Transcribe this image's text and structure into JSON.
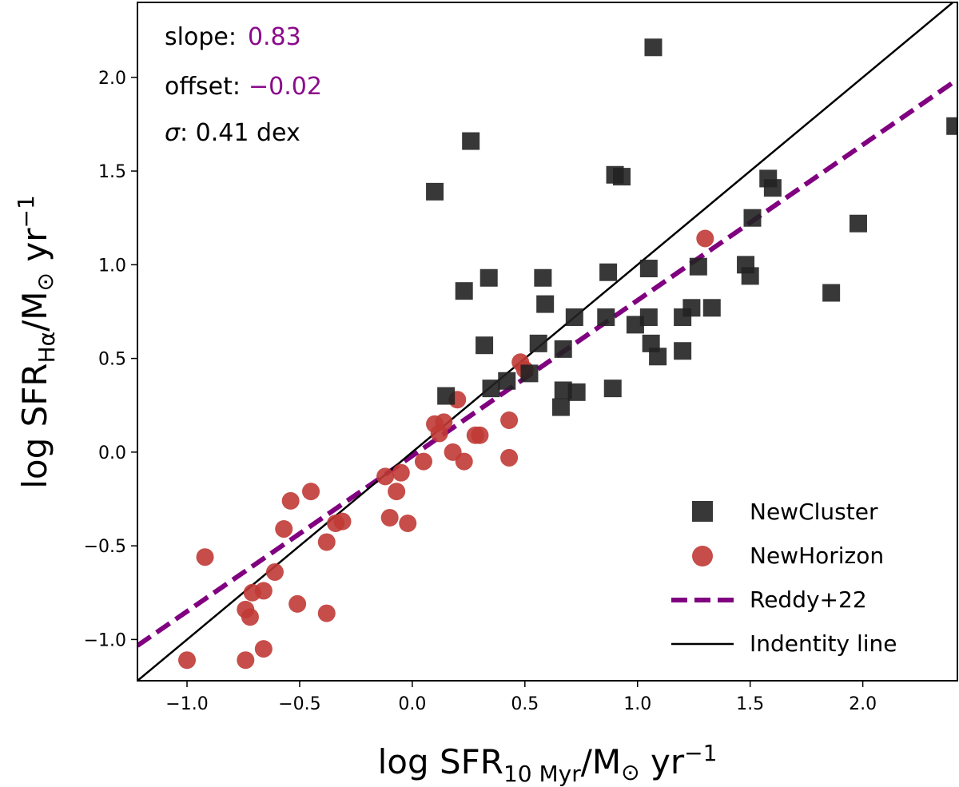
{
  "chart_data": {
    "type": "scatter",
    "xlabel": {
      "main": "log SFR",
      "sub": "10 Myr",
      "unit": "/M",
      "sun": "⊙",
      "tail": " yr",
      "exp": "−1"
    },
    "ylabel": {
      "main": "log SFR",
      "sub": "Hα",
      "unit": "/M",
      "sun": "⊙",
      "tail": " yr",
      "exp": "−1"
    },
    "xlim": [
      -1.22,
      2.42
    ],
    "ylim": [
      -1.22,
      2.4
    ],
    "xticks": [
      -1.0,
      -0.5,
      0.0,
      0.5,
      1.0,
      1.5,
      2.0
    ],
    "xtick_labels": [
      "−1.0",
      "−0.5",
      "0.0",
      "0.5",
      "1.0",
      "1.5",
      "2.0"
    ],
    "yticks": [
      -1.0,
      -0.5,
      0.0,
      0.5,
      1.0,
      1.5,
      2.0
    ],
    "ytick_labels": [
      "−1.0",
      "−0.5",
      "0.0",
      "0.5",
      "1.0",
      "1.5",
      "2.0"
    ],
    "annotations": {
      "slope_label": "slope:",
      "slope_value": "0.83",
      "offset_label": "offset:",
      "offset_value": "−0.02",
      "sigma_symbol": "σ",
      "sigma_rest": ": 0.41 dex"
    },
    "legend_position": "lower-right",
    "colors": {
      "newcluster": "#222222",
      "newhorizon": "#c03a35",
      "reddy": "#800080",
      "identity": "#000000",
      "annotation_value": "#8b0a8b"
    },
    "series": [
      {
        "name": "NewCluster",
        "kind": "points",
        "marker": "square",
        "points": [
          [
            0.15,
            0.3
          ],
          [
            0.32,
            0.57
          ],
          [
            0.35,
            0.34
          ],
          [
            0.42,
            0.38
          ],
          [
            0.23,
            0.86
          ],
          [
            0.34,
            0.93
          ],
          [
            0.1,
            1.39
          ],
          [
            0.26,
            1.66
          ],
          [
            0.52,
            0.42
          ],
          [
            0.56,
            0.58
          ],
          [
            0.58,
            0.93
          ],
          [
            0.59,
            0.79
          ],
          [
            0.66,
            0.24
          ],
          [
            0.67,
            0.33
          ],
          [
            0.67,
            0.55
          ],
          [
            0.72,
            0.72
          ],
          [
            0.73,
            0.32
          ],
          [
            0.87,
            0.96
          ],
          [
            0.86,
            0.72
          ],
          [
            0.89,
            0.34
          ],
          [
            0.9,
            1.48
          ],
          [
            0.93,
            1.47
          ],
          [
            0.99,
            0.68
          ],
          [
            1.05,
            0.72
          ],
          [
            1.05,
            0.98
          ],
          [
            1.06,
            0.58
          ],
          [
            1.07,
            2.16
          ],
          [
            1.09,
            0.51
          ],
          [
            1.2,
            0.54
          ],
          [
            1.2,
            0.72
          ],
          [
            1.24,
            0.77
          ],
          [
            1.27,
            0.99
          ],
          [
            1.33,
            0.77
          ],
          [
            1.48,
            1.0
          ],
          [
            1.5,
            0.94
          ],
          [
            1.51,
            1.25
          ],
          [
            1.58,
            1.46
          ],
          [
            1.6,
            1.41
          ],
          [
            1.86,
            0.85
          ],
          [
            1.98,
            1.22
          ],
          [
            2.41,
            1.74
          ]
        ]
      },
      {
        "name": "NewHorizon",
        "kind": "points",
        "marker": "circle",
        "points": [
          [
            -1.0,
            -1.11
          ],
          [
            -0.92,
            -0.56
          ],
          [
            -0.74,
            -1.11
          ],
          [
            -0.74,
            -0.84
          ],
          [
            -0.72,
            -0.88
          ],
          [
            -0.71,
            -0.75
          ],
          [
            -0.66,
            -0.74
          ],
          [
            -0.66,
            -1.05
          ],
          [
            -0.61,
            -0.64
          ],
          [
            -0.57,
            -0.41
          ],
          [
            -0.54,
            -0.26
          ],
          [
            -0.51,
            -0.81
          ],
          [
            -0.45,
            -0.21
          ],
          [
            -0.38,
            -0.86
          ],
          [
            -0.38,
            -0.48
          ],
          [
            -0.34,
            -0.38
          ],
          [
            -0.31,
            -0.37
          ],
          [
            -0.12,
            -0.13
          ],
          [
            -0.1,
            -0.35
          ],
          [
            -0.07,
            -0.21
          ],
          [
            -0.05,
            -0.11
          ],
          [
            -0.02,
            -0.38
          ],
          [
            0.05,
            -0.05
          ],
          [
            0.1,
            0.15
          ],
          [
            0.12,
            0.1
          ],
          [
            0.14,
            0.16
          ],
          [
            0.18,
            0.0
          ],
          [
            0.2,
            0.28
          ],
          [
            0.23,
            -0.05
          ],
          [
            0.28,
            0.09
          ],
          [
            0.3,
            0.09
          ],
          [
            0.43,
            -0.03
          ],
          [
            0.43,
            0.17
          ],
          [
            0.48,
            0.48
          ],
          [
            0.5,
            0.44
          ],
          [
            1.3,
            1.14
          ]
        ]
      },
      {
        "name": "Reddy+22",
        "kind": "line",
        "style": "dashed",
        "slope": 0.83,
        "intercept": -0.02
      },
      {
        "name": "Indentity line",
        "kind": "line",
        "style": "solid",
        "slope": 1.0,
        "intercept": 0.0
      }
    ]
  }
}
